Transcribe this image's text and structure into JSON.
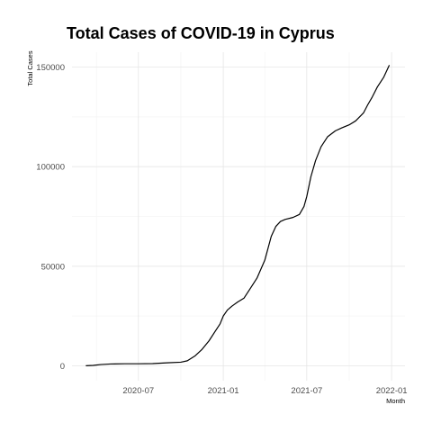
{
  "chart_data": {
    "type": "line",
    "title": "Total Cases of COVID-19 in Cyprus",
    "xlabel": "Month",
    "ylabel": "Total Cases",
    "x_ticks": [
      "2020-07",
      "2021-01",
      "2021-07",
      "2022-01"
    ],
    "y_ticks": [
      0,
      50000,
      100000,
      150000
    ],
    "y_tick_labels": [
      "0",
      "50000",
      "100000",
      "150000"
    ],
    "grid": true,
    "series": [
      {
        "x": [
          "2020-03-09",
          "2020-03-25",
          "2020-04-10",
          "2020-05-01",
          "2020-06-01",
          "2020-07-01",
          "2020-08-01",
          "2020-09-01",
          "2020-10-01",
          "2020-10-15",
          "2020-11-01",
          "2020-11-15",
          "2020-12-01",
          "2020-12-15",
          "2020-12-25",
          "2021-01-01",
          "2021-01-10",
          "2021-01-20",
          "2021-02-01",
          "2021-02-15",
          "2021-03-01",
          "2021-03-15",
          "2021-04-01",
          "2021-04-15",
          "2021-04-25",
          "2021-05-05",
          "2021-05-15",
          "2021-06-01",
          "2021-06-15",
          "2021-06-25",
          "2021-07-01",
          "2021-07-10",
          "2021-07-20",
          "2021-08-01",
          "2021-08-15",
          "2021-09-01",
          "2021-09-15",
          "2021-10-01",
          "2021-10-15",
          "2021-11-01",
          "2021-11-10",
          "2021-11-20",
          "2021-12-01",
          "2021-12-15",
          "2021-12-27"
        ],
        "y": [
          0,
          200,
          600,
          900,
          1000,
          1000,
          1100,
          1500,
          1800,
          2500,
          5000,
          8000,
          12500,
          17500,
          21000,
          25000,
          28000,
          30000,
          32000,
          34000,
          39000,
          44000,
          53000,
          65000,
          70000,
          72500,
          73500,
          74500,
          76000,
          80000,
          85000,
          95000,
          103000,
          110000,
          115000,
          118000,
          119500,
          121000,
          123000,
          127000,
          131000,
          135000,
          140000,
          145000,
          151000
        ]
      }
    ]
  }
}
